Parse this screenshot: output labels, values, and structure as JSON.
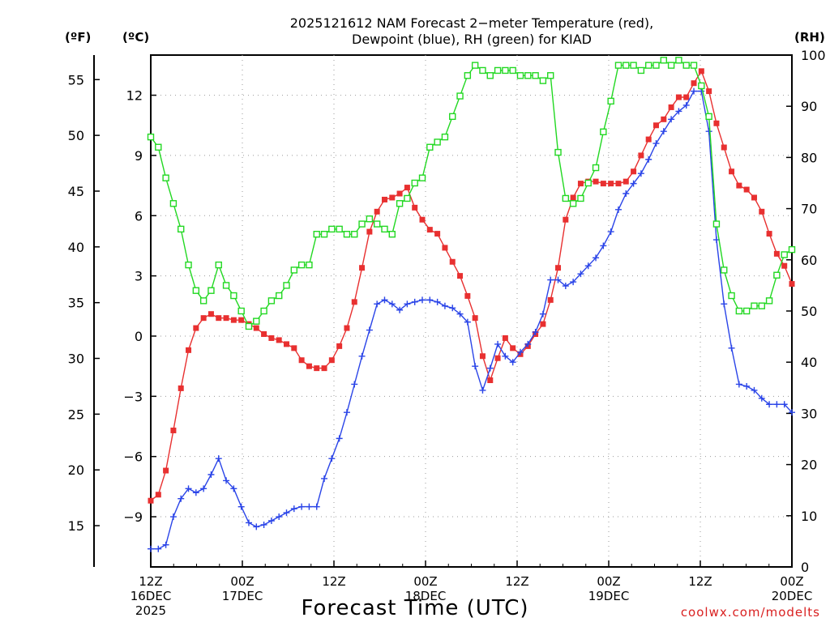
{
  "chart_data": {
    "type": "line",
    "title": "2025121612 NAM Forecast 2−meter Temperature (red),",
    "title_line2": "Dewpoint (blue), RH (green) for KIAD",
    "unit_labels": {
      "fahrenheit": "(ºF)",
      "celsius": "(ºC)",
      "rh": "(RH)"
    },
    "xlabel": "Forecast Time (UTC)",
    "credit": "coolwx.com/modelts",
    "x_unit": "hours since 12Z 16DEC 2025",
    "xlim": [
      0,
      84
    ],
    "celsius_lim": [
      -11.5,
      14.0
    ],
    "rh_lim": [
      0,
      100
    ],
    "x_ticks": [
      {
        "x": 0,
        "labels": [
          "12Z",
          "16DEC",
          "2025"
        ]
      },
      {
        "x": 12,
        "labels": [
          "00Z",
          "17DEC"
        ]
      },
      {
        "x": 24,
        "labels": [
          "12Z"
        ]
      },
      {
        "x": 36,
        "labels": [
          "00Z",
          "18DEC"
        ]
      },
      {
        "x": 48,
        "labels": [
          "12Z"
        ]
      },
      {
        "x": 60,
        "labels": [
          "00Z",
          "19DEC"
        ]
      },
      {
        "x": 72,
        "labels": [
          "12Z"
        ]
      },
      {
        "x": 84,
        "labels": [
          "00Z",
          "20DEC"
        ]
      }
    ],
    "celsius_ticks": [
      12,
      9,
      6,
      3,
      0,
      -3,
      -6,
      -9
    ],
    "celsius_tick_labels": [
      "12",
      "9",
      "6",
      "3",
      "0",
      "−3",
      "−6",
      "−9"
    ],
    "fahrenheit_ticks": [
      55,
      50,
      45,
      40,
      35,
      30,
      25,
      20,
      15
    ],
    "rh_ticks": [
      100,
      90,
      80,
      70,
      60,
      50,
      40,
      30,
      20,
      10,
      0
    ],
    "grid": true,
    "series": [
      {
        "name": "2-meter Temperature",
        "axis": "celsius",
        "color": "#e83030",
        "marker": "filled-square",
        "values": [
          -8.2,
          -7.9,
          -6.7,
          -4.7,
          -2.6,
          -0.7,
          0.4,
          0.9,
          1.1,
          0.9,
          0.9,
          0.8,
          0.8,
          0.6,
          0.4,
          0.1,
          -0.1,
          -0.2,
          -0.4,
          -0.6,
          -1.2,
          -1.5,
          -1.6,
          -1.6,
          -1.2,
          -0.5,
          0.4,
          1.7,
          3.4,
          5.2,
          6.2,
          6.8,
          6.9,
          7.1,
          7.4,
          6.4,
          5.8,
          5.3,
          5.1,
          4.4,
          3.7,
          3.0,
          2.0,
          0.9,
          -1.0,
          -2.2,
          -1.1,
          -0.1,
          -0.6,
          -0.9,
          -0.5,
          0.1,
          0.6,
          1.8,
          3.4,
          5.8,
          6.9,
          7.6,
          7.7,
          7.7,
          7.6,
          7.6,
          7.6,
          7.7,
          8.2,
          9.0,
          9.8,
          10.5,
          10.8,
          11.4,
          11.9,
          11.9,
          12.6,
          13.2,
          12.2,
          10.6,
          9.4,
          8.2,
          7.5,
          7.3,
          6.9,
          6.2,
          5.1,
          4.1,
          3.5,
          2.6
        ]
      },
      {
        "name": "Dewpoint",
        "axis": "celsius",
        "color": "#2a44e8",
        "marker": "plus",
        "values": [
          -10.6,
          -10.6,
          -10.4,
          -9.0,
          -8.1,
          -7.6,
          -7.8,
          -7.6,
          -6.9,
          -6.1,
          -7.2,
          -7.6,
          -8.5,
          -9.3,
          -9.5,
          -9.4,
          -9.2,
          -9.0,
          -8.8,
          -8.6,
          -8.5,
          -8.5,
          -8.5,
          -7.1,
          -6.1,
          -5.1,
          -3.8,
          -2.4,
          -1.0,
          0.3,
          1.6,
          1.8,
          1.6,
          1.3,
          1.6,
          1.7,
          1.8,
          1.8,
          1.7,
          1.5,
          1.4,
          1.1,
          0.7,
          -1.5,
          -2.7,
          -1.6,
          -0.4,
          -1.0,
          -1.3,
          -0.8,
          -0.4,
          0.2,
          1.1,
          2.8,
          2.8,
          2.5,
          2.7,
          3.1,
          3.5,
          3.9,
          4.5,
          5.2,
          6.3,
          7.1,
          7.6,
          8.1,
          8.8,
          9.6,
          10.2,
          10.8,
          11.2,
          11.5,
          12.2,
          12.2,
          10.2,
          4.8,
          1.6,
          -0.6,
          -2.4,
          -2.5,
          -2.7,
          -3.1,
          -3.4,
          -3.4,
          -3.4,
          -3.8
        ]
      },
      {
        "name": "RH",
        "axis": "rh",
        "color": "#22d822",
        "marker": "open-square",
        "values": [
          84,
          82,
          76,
          71,
          66,
          59,
          54,
          52,
          54,
          59,
          55,
          53,
          50,
          47,
          48,
          50,
          52,
          53,
          55,
          58,
          59,
          59,
          65,
          65,
          66,
          66,
          65,
          65,
          67,
          68,
          67,
          66,
          65,
          71,
          72,
          75,
          76,
          82,
          83,
          84,
          88,
          92,
          96,
          98,
          97,
          96,
          97,
          97,
          97,
          96,
          96,
          96,
          95,
          96,
          81,
          72,
          71,
          72,
          75,
          78,
          85,
          91,
          98,
          98,
          98,
          97,
          98,
          98,
          99,
          98,
          99,
          98,
          98,
          94,
          88,
          67,
          58,
          53,
          50,
          50,
          51,
          51,
          52,
          57,
          61,
          62
        ]
      }
    ]
  }
}
